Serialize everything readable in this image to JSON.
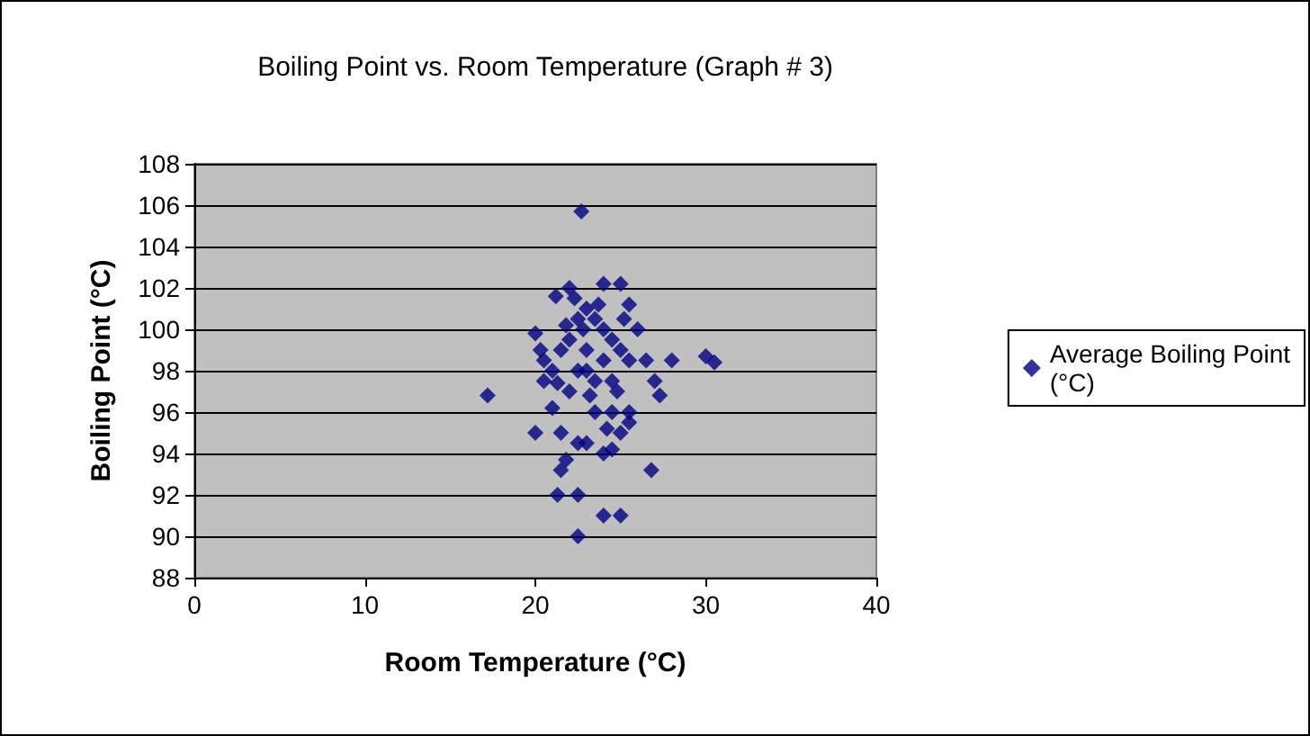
{
  "chart_data": {
    "type": "scatter",
    "title": "Boiling Point vs. Room Temperature (Graph # 3)",
    "xlabel": "Room Temperature (°C)",
    "ylabel": "Boiling Point (°C)",
    "xlim": [
      0,
      40
    ],
    "xticks": [
      0,
      10,
      20,
      30,
      40
    ],
    "ylim": [
      88,
      108
    ],
    "yticks": [
      88,
      90,
      92,
      94,
      96,
      98,
      100,
      102,
      104,
      106,
      108
    ],
    "grid": "y",
    "legend": "right",
    "marker": "diamond",
    "series": [
      {
        "name": "Average Boiling Point (°C)",
        "color": "#000080",
        "x": [
          22.7,
          17.2,
          20,
          20,
          21.2,
          22,
          24,
          25,
          25.5,
          26,
          26.5,
          28,
          30,
          30.5,
          27,
          27.3,
          26.8,
          21.3,
          22.5,
          22.5,
          24,
          25,
          21.5,
          21.8,
          21.5,
          22.5,
          23,
          24,
          24.5,
          25,
          25.5,
          24.5,
          23.5,
          21,
          20.5,
          21,
          20.5,
          21.5,
          22,
          22.5,
          23,
          23.5,
          24,
          24.5,
          25,
          25.5,
          23,
          23.5,
          22,
          22.5,
          23,
          24,
          24.5,
          25.5,
          21.8,
          22.8,
          23.2,
          24.2,
          20.3,
          21.3,
          22.3,
          23.7,
          24.8,
          25.2
        ],
        "values": [
          105.7,
          96.8,
          95,
          99.8,
          101.6,
          102,
          102.2,
          102.2,
          101.2,
          100,
          98.5,
          98.5,
          98.7,
          98.4,
          97.5,
          96.8,
          93.2,
          92,
          92,
          90,
          91,
          91,
          93.2,
          93.7,
          95,
          94.5,
          94.5,
          94,
          94.2,
          95,
          95.5,
          96,
          96,
          96.2,
          97.5,
          98,
          98.5,
          99,
          99.5,
          100.5,
          101,
          100.5,
          100,
          99.5,
          99,
          98.5,
          98,
          97.5,
          97,
          98,
          99,
          98.5,
          97.5,
          96,
          100.2,
          100,
          96.8,
          95.2,
          99,
          97.4,
          101.5,
          101.2,
          97,
          100.5
        ]
      }
    ]
  }
}
